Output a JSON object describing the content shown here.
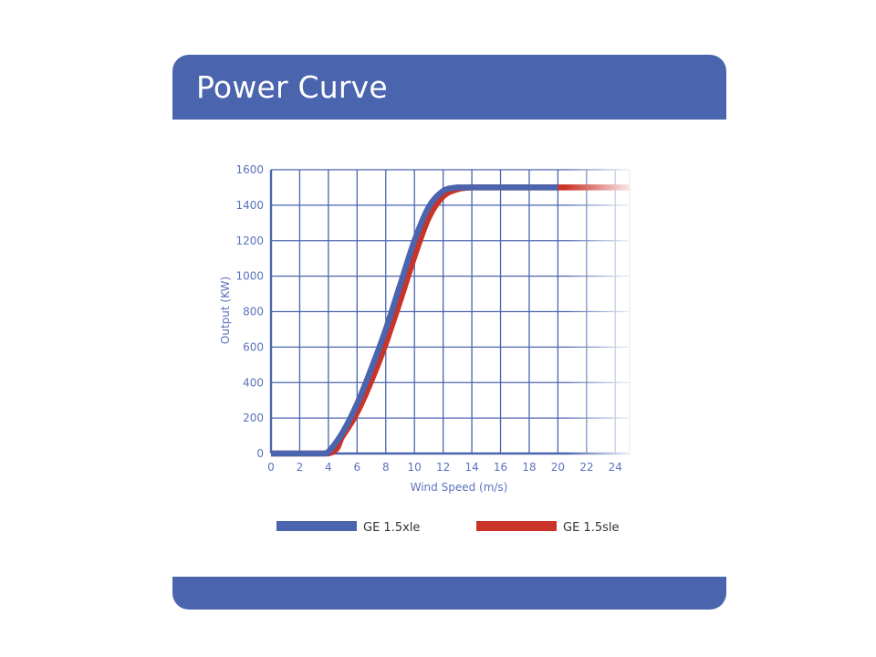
{
  "header": {
    "title": "Power Curve"
  },
  "colors": {
    "header": "#4a64ae",
    "grid": "#4a64ae",
    "series1": "#4a64ae",
    "series2": "#c93328"
  },
  "chart_data": {
    "type": "line",
    "xlabel": "Wind Speed (m/s)",
    "ylabel": "Output (KW)",
    "xlim": [
      0,
      25
    ],
    "ylim": [
      0,
      1600
    ],
    "xticks": [
      0,
      2,
      4,
      6,
      8,
      10,
      12,
      14,
      16,
      18,
      20,
      22,
      24
    ],
    "yticks": [
      0,
      200,
      400,
      600,
      800,
      1000,
      1200,
      1400,
      1600
    ],
    "grid": true,
    "legend": "bottom",
    "series": [
      {
        "name": "GE 1.5xle",
        "color": "#4a64ae",
        "x": [
          0,
          3.5,
          4,
          5,
          6,
          7,
          8,
          9,
          10,
          11,
          12,
          13,
          14,
          16,
          20
        ],
        "y": [
          0,
          0,
          10,
          120,
          280,
          480,
          700,
          950,
          1200,
          1390,
          1480,
          1500,
          1500,
          1500,
          1500
        ]
      },
      {
        "name": "GE 1.5sle",
        "color": "#c93328",
        "x": [
          0,
          4,
          5,
          6,
          7,
          8,
          9,
          10,
          11,
          12,
          13,
          14,
          16,
          20,
          25
        ],
        "y": [
          0,
          0,
          100,
          230,
          410,
          620,
          860,
          1110,
          1330,
          1450,
          1490,
          1500,
          1500,
          1500,
          1500
        ]
      }
    ]
  }
}
